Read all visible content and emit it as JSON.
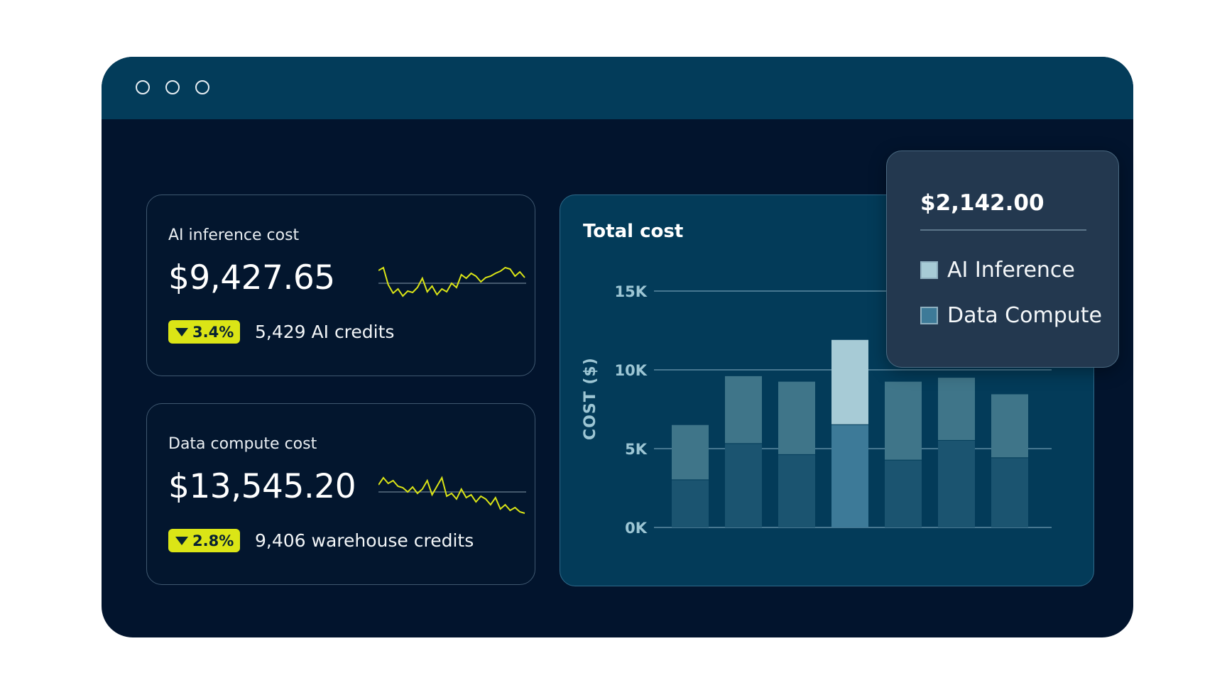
{
  "window": {
    "controls": [
      "circle",
      "circle",
      "circle"
    ]
  },
  "cards": [
    {
      "label": "AI inference cost",
      "value": "$9,427.65",
      "change": "3.4%",
      "change_direction": "down",
      "credits": "5,429 AI credits"
    },
    {
      "label": "Data compute cost",
      "value": "$13,545.20",
      "change": "2.8%",
      "change_direction": "down",
      "credits": "9,406 warehouse credits"
    }
  ],
  "chart_data": {
    "type": "bar",
    "title": "Total cost",
    "ylabel": "COST ($)",
    "yticks": [
      "0K",
      "5K",
      "10K",
      "15K"
    ],
    "ylim": [
      0,
      15000
    ],
    "stacked": true,
    "series": [
      {
        "name": "Data Compute",
        "values": [
          3000,
          5300,
          4600,
          6500,
          4250,
          5500,
          4400
        ]
      },
      {
        "name": "AI Inference",
        "values": [
          3500,
          4300,
          4650,
          5400,
          5000,
          4000,
          4050
        ]
      }
    ],
    "highlight_index": 3,
    "grid": true
  },
  "tooltip": {
    "value": "$2,142.00",
    "legend": [
      {
        "label": "AI Inference",
        "color": "#a7cbd6"
      },
      {
        "label": "Data Compute",
        "color": "#3d7a98"
      }
    ]
  },
  "colors": {
    "accent": "#dbe516",
    "window_bg": "#02142d",
    "titlebar": "#033c5a",
    "sparkline": "#dbe516"
  }
}
